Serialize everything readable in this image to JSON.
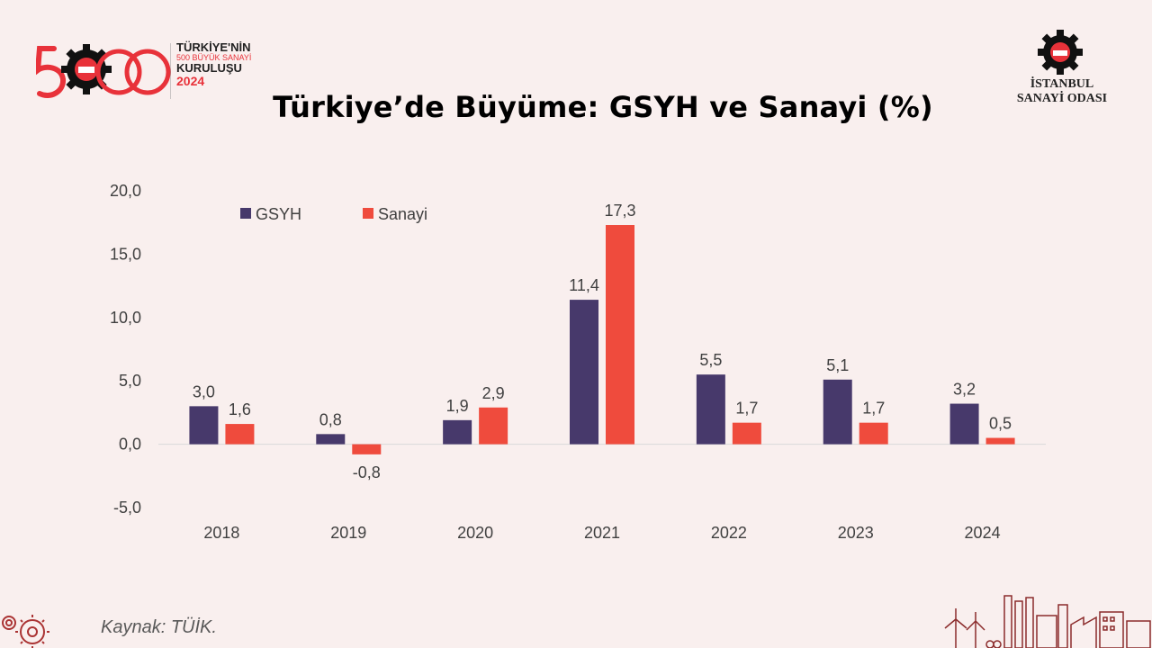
{
  "header": {
    "logo_left": {
      "line1": "TÜRKİYE'NİN",
      "line2": "500 BÜYÜK SANAYİ",
      "line3": "KURULUŞU",
      "line4": "2024"
    },
    "logo_right": {
      "line1": "İSTANBUL",
      "line2": "SANAYİ ODASI"
    }
  },
  "source": "Kaynak: TÜİK.",
  "colors": {
    "background": "#f9efee",
    "gsyh": "#47396b",
    "sanayi": "#ef4b3d",
    "brand_red": "#e8323a"
  },
  "chart_data": {
    "type": "bar",
    "title": "Türkiye’de Büyüme: GSYH ve Sanayi (%)",
    "categories": [
      "2018",
      "2019",
      "2020",
      "2021",
      "2022",
      "2023",
      "2024"
    ],
    "series": [
      {
        "name": "GSYH",
        "values": [
          3.0,
          0.8,
          1.9,
          11.4,
          5.5,
          5.1,
          3.2
        ],
        "labels": [
          "3,0",
          "0,8",
          "1,9",
          "11,4",
          "5,5",
          "5,1",
          "3,2"
        ]
      },
      {
        "name": "Sanayi",
        "values": [
          1.6,
          -0.8,
          2.9,
          17.3,
          1.7,
          1.7,
          0.5
        ],
        "labels": [
          "1,6",
          "-0,8",
          "2,9",
          "17,3",
          "1,7",
          "1,7",
          "0,5"
        ]
      }
    ],
    "ylim": [
      -5.0,
      20.0
    ],
    "yticks": [
      "-5,0",
      "0,0",
      "5,0",
      "10,0",
      "15,0",
      "20,0"
    ],
    "ytick_values": [
      -5,
      0,
      5,
      10,
      15,
      20
    ],
    "xlabel": "",
    "ylabel": "",
    "grid": false,
    "legend": "top-left"
  }
}
